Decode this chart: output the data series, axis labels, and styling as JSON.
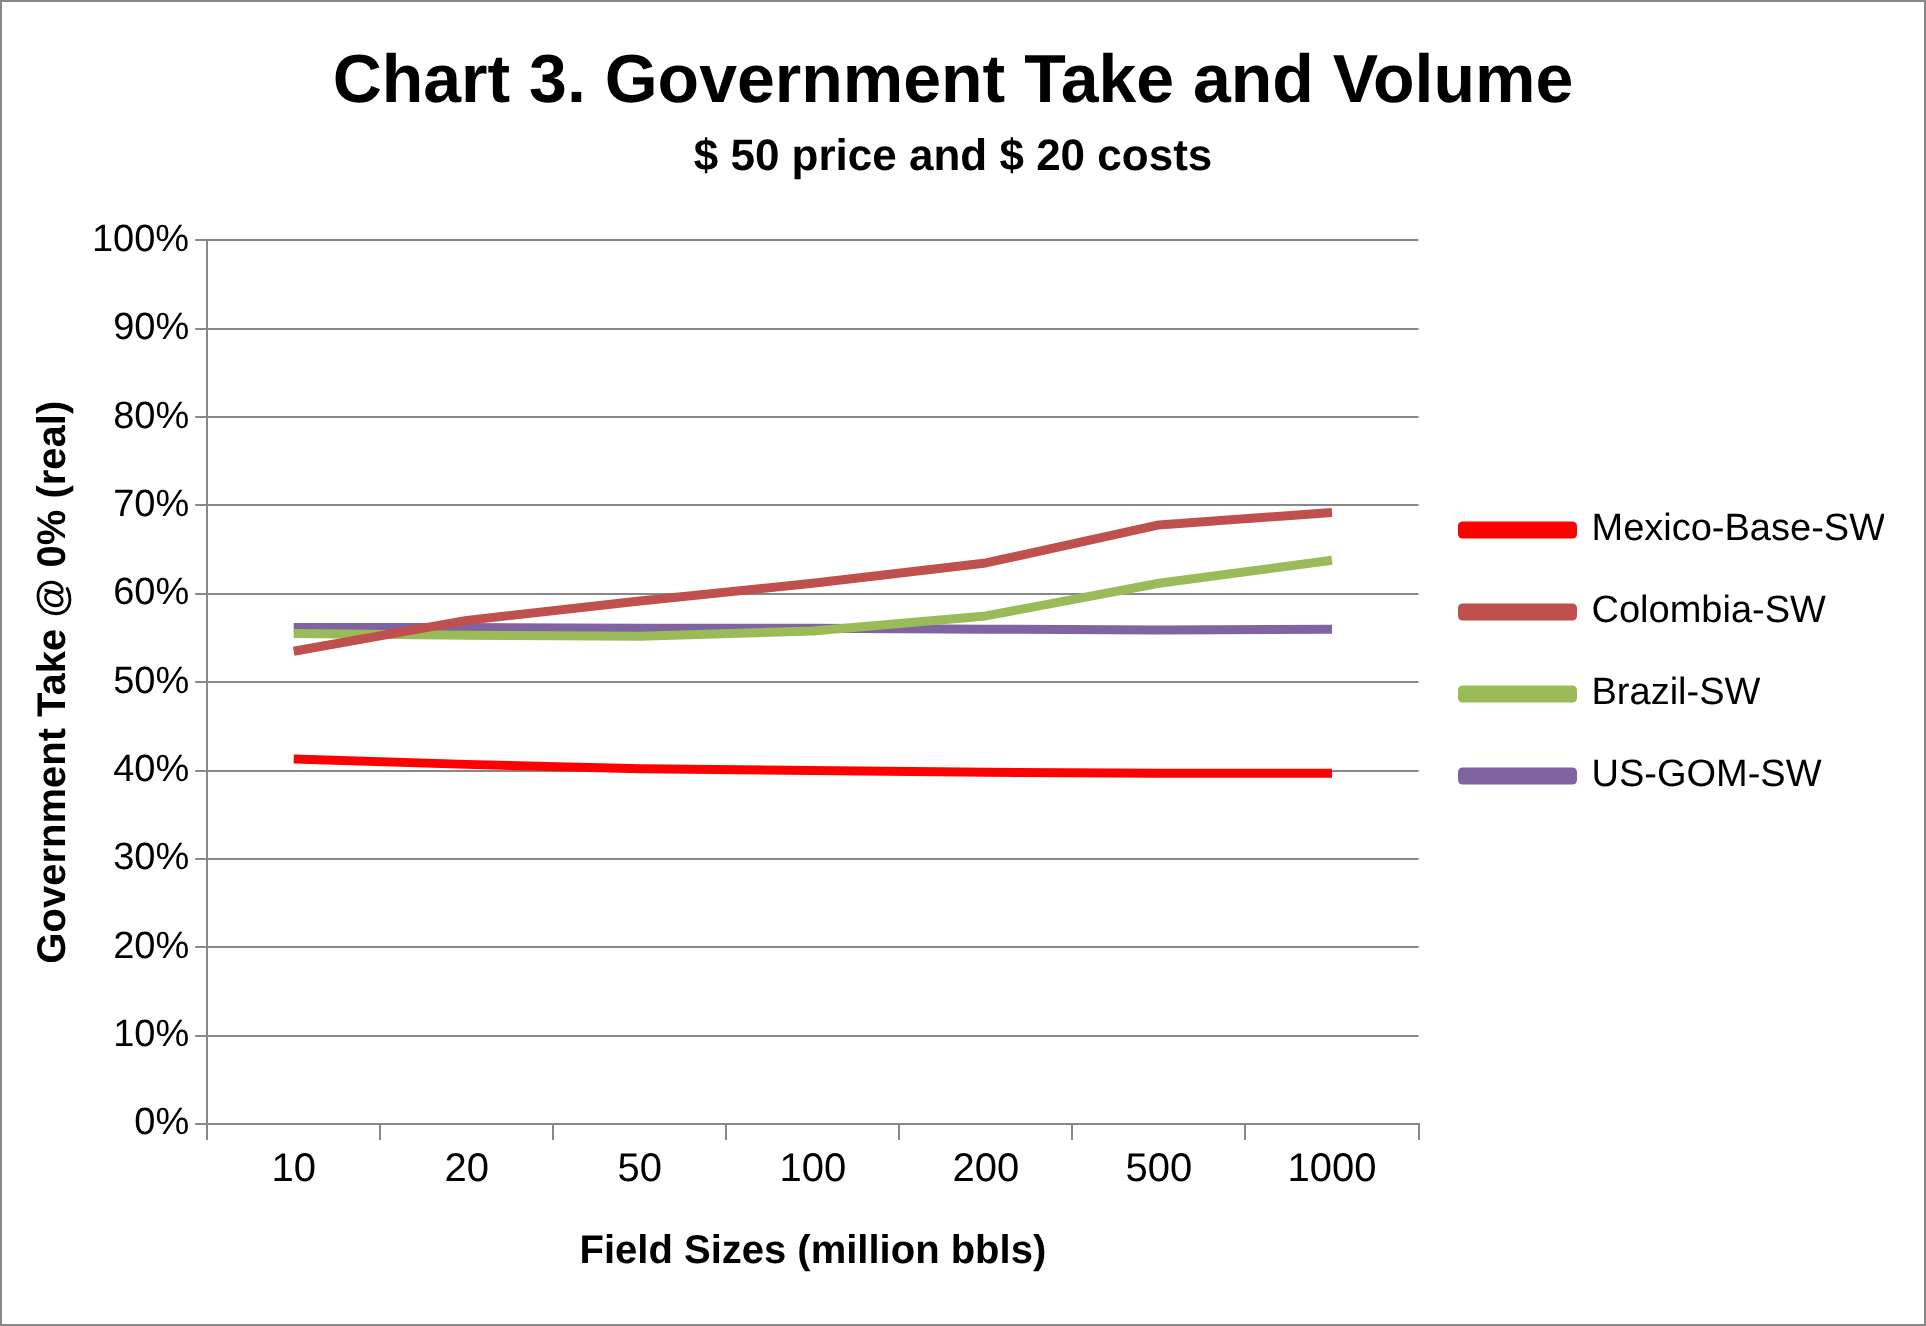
{
  "chart_data": {
    "type": "line",
    "title": "Chart 3. Government Take and Volume",
    "subtitle": "$ 50 price and $ 20 costs",
    "xlabel": "Field Sizes (million bbls)",
    "ylabel": "Government Take @ 0% (real)",
    "categories": [
      "10",
      "20",
      "50",
      "100",
      "200",
      "500",
      "1000"
    ],
    "series": [
      {
        "name": "Mexico-Base-SW",
        "color": "#ff0000",
        "values": [
          41.3,
          40.7,
          40.2,
          40.0,
          39.8,
          39.7,
          39.7
        ]
      },
      {
        "name": "Colombia-SW",
        "color": "#c0504d",
        "values": [
          53.5,
          57.0,
          59.2,
          61.2,
          63.5,
          67.8,
          69.2
        ]
      },
      {
        "name": "Brazil-SW",
        "color": "#9bbb59",
        "values": [
          55.5,
          55.3,
          55.2,
          55.8,
          57.5,
          61.2,
          63.8
        ]
      },
      {
        "name": "US-GOM-SW",
        "color": "#8064a2",
        "values": [
          56.2,
          56.2,
          56.1,
          56.1,
          56.0,
          55.9,
          56.0
        ]
      }
    ],
    "ylim": [
      0,
      100
    ],
    "yticks": [
      {
        "value": 0,
        "label": "0%"
      },
      {
        "value": 10,
        "label": "10%"
      },
      {
        "value": 20,
        "label": "20%"
      },
      {
        "value": 30,
        "label": "30%"
      },
      {
        "value": 40,
        "label": "40%"
      },
      {
        "value": 50,
        "label": "50%"
      },
      {
        "value": 60,
        "label": "60%"
      },
      {
        "value": 70,
        "label": "70%"
      },
      {
        "value": 80,
        "label": "80%"
      },
      {
        "value": 90,
        "label": "90%"
      },
      {
        "value": 100,
        "label": "100%"
      }
    ],
    "grid": "y",
    "legend": "right",
    "marker": "none",
    "line_style": "solid"
  }
}
